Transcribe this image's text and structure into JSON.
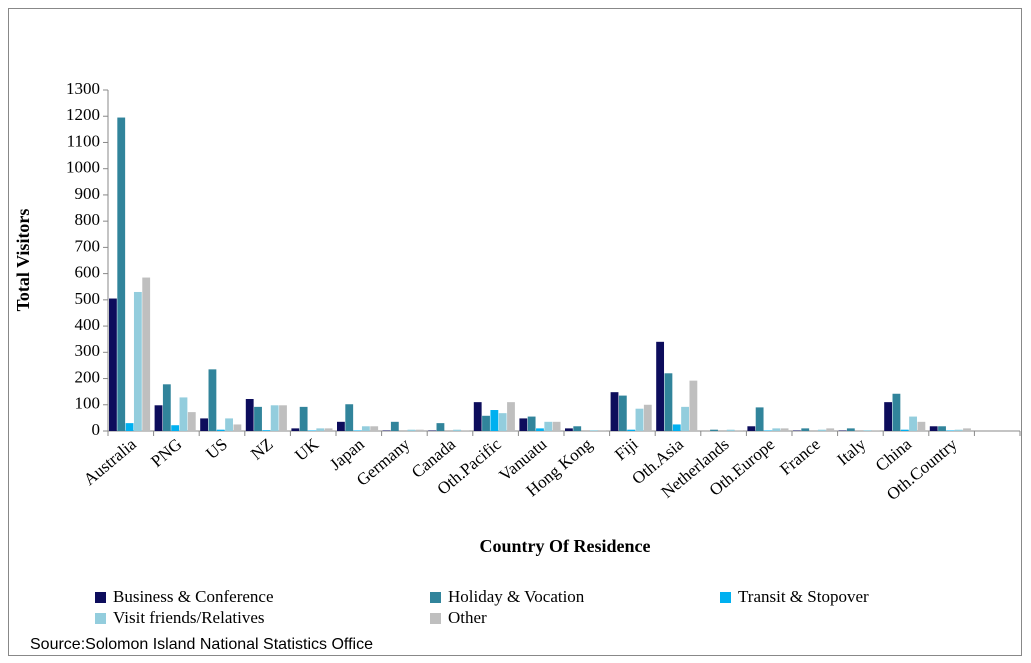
{
  "chart_data": {
    "type": "bar",
    "x_label": "Country Of Residence",
    "y_label": "Total Visitors",
    "source": "Source:Solomon Island National Statistics Office",
    "categories": [
      "Australia",
      "PNG",
      "US",
      "NZ",
      "UK",
      "Japan",
      "Germany",
      "Canada",
      "Oth.Pacific",
      "Vanuatu",
      "Hong Kong",
      "Fiji",
      "Oth.Asia",
      "Netherlands",
      "Oth.Europe",
      "France",
      "Italy",
      "China",
      "Oth.Country",
      null
    ],
    "series": [
      {
        "name": "Business & Conference",
        "color": "#0d0d5c",
        "values": [
          505,
          98,
          48,
          122,
          10,
          35,
          2,
          2,
          110,
          48,
          10,
          148,
          340,
          0,
          18,
          2,
          2,
          110,
          18,
          null
        ]
      },
      {
        "name": "Holiday & Vocation",
        "color": "#31849b",
        "values": [
          1195,
          178,
          235,
          92,
          92,
          102,
          35,
          30,
          58,
          55,
          18,
          135,
          220,
          5,
          90,
          10,
          10,
          142,
          18,
          null
        ]
      },
      {
        "name": "Transit & Stopover",
        "color": "#00b0f0",
        "values": [
          30,
          22,
          5,
          3,
          2,
          2,
          0,
          0,
          80,
          10,
          0,
          5,
          25,
          0,
          2,
          0,
          0,
          5,
          2,
          null
        ]
      },
      {
        "name": "Visit friends/Relatives",
        "color": "#93cddd",
        "values": [
          530,
          128,
          48,
          98,
          10,
          18,
          5,
          5,
          68,
          35,
          3,
          85,
          92,
          5,
          10,
          5,
          3,
          55,
          5,
          null
        ]
      },
      {
        "name": "Other",
        "color": "#bfbfbf",
        "values": [
          585,
          72,
          25,
          98,
          10,
          18,
          5,
          3,
          110,
          35,
          3,
          100,
          192,
          3,
          10,
          10,
          3,
          35,
          10,
          null
        ]
      }
    ],
    "ylim": [
      0,
      1300
    ],
    "yticks": [
      0,
      100,
      200,
      300,
      400,
      500,
      600,
      700,
      800,
      900,
      1000,
      1100,
      1200,
      1300
    ],
    "grid": false,
    "legend": "bottom"
  }
}
